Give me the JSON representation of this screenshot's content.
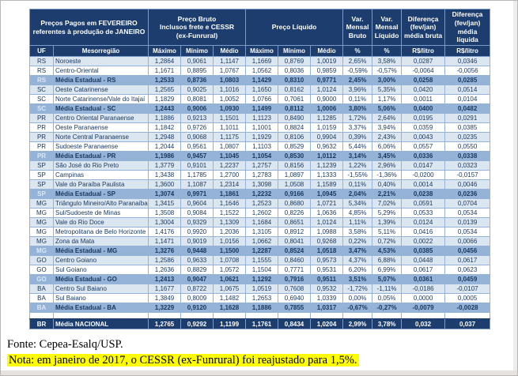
{
  "colors": {
    "header_navy": "#1C3D6E",
    "state_avg_blue": "#95B3D7",
    "zebra_pale_blue": "#DCE6F1",
    "data_text_navy": "#17375E",
    "note_highlight_yellow": "#FFFF00"
  },
  "table": {
    "header": {
      "title": "Preços Pagos em FEVEREIRO\nreferentes à produção de JANEIRO",
      "preco_bruto": "Preço Bruto\nInclusos frete e CESSR\n(ex-Funrural)",
      "preco_liquido": "Preço Líquido",
      "var_mensal_bruto": "Var.\nMensal\nBruto",
      "var_mensal_liquido": "Var.\nMensal\nLíquido",
      "diferenca_bruta": "Diferença\n(fev/jan)\nmédia bruta",
      "diferenca_liquida": "Diferença\n(fev/jan) média\nlíquida",
      "sub": [
        "UF",
        "Mesorregião",
        "Máximo",
        "Mínimo",
        "Médio",
        "Máximo",
        "Mínimo",
        "Médio",
        "%",
        "%",
        "R$/litro",
        "R$/litro"
      ]
    },
    "rows": [
      {
        "uf": "RS",
        "name": "Noroeste",
        "shade": "pale",
        "values": [
          "1,2864",
          "0,9061",
          "1,1147",
          "1,1669",
          "0,8769",
          "1,0019",
          "2,65%",
          "3,58%",
          "0,0287",
          "0,0346"
        ]
      },
      {
        "uf": "RS",
        "name": "Centro-Oriental",
        "shade": "white",
        "values": [
          "1,1671",
          "0,8895",
          "1,0767",
          "1,0562",
          "0,8036",
          "0,9859",
          "-0,59%",
          "-0,57%",
          "-0,0064",
          "-0,0056"
        ]
      },
      {
        "uf": "RS",
        "name": "Média Estadual - RS",
        "shade": "avg",
        "values": [
          "1,2533",
          "0,8736",
          "1,0803",
          "1,1429",
          "0,8310",
          "0,9771",
          "2,45%",
          "3,00%",
          "0,0258",
          "0,0285"
        ]
      },
      {
        "uf": "SC",
        "name": "Oeste Catarinense",
        "shade": "pale",
        "values": [
          "1,2565",
          "0,9025",
          "1,1016",
          "1,1650",
          "0,8162",
          "1,0124",
          "3,96%",
          "5,35%",
          "0,0420",
          "0,0514"
        ]
      },
      {
        "uf": "SC",
        "name": "Norte Catarinense/Vale do Itajaí",
        "shade": "white",
        "values": [
          "1,1829",
          "0,8081",
          "1,0052",
          "1,0766",
          "0,7061",
          "0,9000",
          "0,11%",
          "1,17%",
          "0,0011",
          "0,0104"
        ]
      },
      {
        "uf": "SC",
        "name": "Média Estadual - SC",
        "shade": "avg",
        "values": [
          "1,2443",
          "0,9006",
          "1,0930",
          "1,1499",
          "0,8112",
          "1,0006",
          "3,80%",
          "5,06%",
          "0,0400",
          "0,0482"
        ]
      },
      {
        "uf": "PR",
        "name": "Centro Oriental Paranaense",
        "shade": "pale",
        "values": [
          "1,1886",
          "0,9213",
          "1,1501",
          "1,1123",
          "0,8490",
          "1,1285",
          "1,72%",
          "2,64%",
          "0,0195",
          "0,0291"
        ]
      },
      {
        "uf": "PR",
        "name": "Oeste Paranaense",
        "shade": "white",
        "values": [
          "1,1842",
          "0,9726",
          "1,1011",
          "1,1001",
          "0,8824",
          "1,0159",
          "3,37%",
          "3,94%",
          "0,0359",
          "0,0385"
        ]
      },
      {
        "uf": "PR",
        "name": "Norte Central Paranaense",
        "shade": "pale",
        "values": [
          "1,2948",
          "0,9068",
          "1,1175",
          "1,1929",
          "0,8106",
          "0,9904",
          "0,39%",
          "2,43%",
          "0,0043",
          "0,0235"
        ]
      },
      {
        "uf": "PR",
        "name": "Sudoeste Paranaense",
        "shade": "white",
        "values": [
          "1,2044",
          "0,9561",
          "1,0807",
          "1,1103",
          "0,8529",
          "0,9632",
          "5,44%",
          "6,06%",
          "0,0557",
          "0,0550"
        ]
      },
      {
        "uf": "PR",
        "name": "Média Estadual - PR",
        "shade": "avg",
        "values": [
          "1,1986",
          "0,9457",
          "1,1045",
          "1,1054",
          "0,8530",
          "1,0112",
          "3,14%",
          "3,45%",
          "0,0336",
          "0,0338"
        ]
      },
      {
        "uf": "SP",
        "name": "São José do Rio Preto",
        "shade": "pale",
        "values": [
          "1,3779",
          "0,9101",
          "1,2237",
          "1,2757",
          "0,8156",
          "1,1239",
          "1,22%",
          "2,96%",
          "0,0147",
          "0,0323"
        ]
      },
      {
        "uf": "SP",
        "name": "Campinas",
        "shade": "white",
        "values": [
          "1,3438",
          "1,1785",
          "1,2700",
          "1,2783",
          "1,0897",
          "1,1333",
          "-1,55%",
          "-1,36%",
          "-0,0200",
          "-0,0157"
        ]
      },
      {
        "uf": "SP",
        "name": "Vale do Paraíba Paulista",
        "shade": "pale",
        "values": [
          "1,3600",
          "1,1087",
          "1,2314",
          "1,3098",
          "1,0508",
          "1,1589",
          "0,11%",
          "0,40%",
          "0,0014",
          "0,0046"
        ]
      },
      {
        "uf": "SP",
        "name": "Média Estadual - SP",
        "shade": "avg",
        "values": [
          "1,3074",
          "0,9971",
          "1,1861",
          "1,2232",
          "0,9166",
          "1,0945",
          "2,04%",
          "2,21%",
          "0,0238",
          "0,0236"
        ]
      },
      {
        "uf": "MG",
        "name": "Triângulo Mineiro/Alto Paranaíba",
        "shade": "pale",
        "values": [
          "1,3415",
          "0,9604",
          "1,1646",
          "1,2523",
          "0,8680",
          "1,0721",
          "5,34%",
          "7,02%",
          "0,0591",
          "0,0704"
        ]
      },
      {
        "uf": "MG",
        "name": "Sul/Sudoeste de Minas",
        "shade": "white",
        "values": [
          "1,3508",
          "0,9084",
          "1,1522",
          "1,2602",
          "0,8226",
          "1,0636",
          "4,85%",
          "5,29%",
          "0,0533",
          "0,0534"
        ]
      },
      {
        "uf": "MG",
        "name": "Vale do Rio Doce",
        "shade": "pale",
        "values": [
          "1,3004",
          "0,9329",
          "1,1309",
          "1,1684",
          "0,8651",
          "1,0124",
          "1,11%",
          "1,39%",
          "0,0124",
          "0,0139"
        ]
      },
      {
        "uf": "MG",
        "name": "Metropolitana de Belo Horizonte",
        "shade": "white",
        "values": [
          "1,4176",
          "0,9920",
          "1,2036",
          "1,3105",
          "0,8912",
          "1,0988",
          "3,58%",
          "5,11%",
          "0,0416",
          "0,0534"
        ]
      },
      {
        "uf": "MG",
        "name": "Zona da Mata",
        "shade": "pale",
        "values": [
          "1,1471",
          "0,9019",
          "1,0156",
          "1,0662",
          "0,8041",
          "0,9268",
          "0,22%",
          "0,72%",
          "0,0022",
          "0,0066"
        ]
      },
      {
        "uf": "MG",
        "name": "Média Estadual - MG",
        "shade": "avg",
        "values": [
          "1,3276",
          "0,9448",
          "1,1500",
          "1,2287",
          "0,8524",
          "1,0518",
          "3,47%",
          "4,53%",
          "0,0385",
          "0,0456"
        ]
      },
      {
        "uf": "GO",
        "name": "Centro Goiano",
        "shade": "pale",
        "values": [
          "1,2586",
          "0,9633",
          "1,0708",
          "1,1555",
          "0,8460",
          "0,9573",
          "4,37%",
          "6,88%",
          "0,0448",
          "0,0617"
        ]
      },
      {
        "uf": "GO",
        "name": "Sul Goiano",
        "shade": "white",
        "values": [
          "1,2636",
          "0,8829",
          "1,0572",
          "1,1504",
          "0,7771",
          "0,9531",
          "6,20%",
          "6,99%",
          "0,0617",
          "0,0623"
        ]
      },
      {
        "uf": "GO",
        "name": "Média Estadual - GO",
        "shade": "avg",
        "values": [
          "1,2413",
          "0,9047",
          "1,0621",
          "1,1292",
          "0,7916",
          "0,9511",
          "3,51%",
          "5,07%",
          "0,0361",
          "0,0459"
        ]
      },
      {
        "uf": "BA",
        "name": "Centro Sul Baiano",
        "shade": "pale",
        "values": [
          "1,1677",
          "0,8722",
          "1,0675",
          "1,0519",
          "0,7608",
          "0,9532",
          "-1,72%",
          "-1,11%",
          "-0,0186",
          "-0,0107"
        ]
      },
      {
        "uf": "BA",
        "name": "Sul Baiano",
        "shade": "white",
        "values": [
          "1,3849",
          "0,8009",
          "1,1482",
          "1,2653",
          "0,6940",
          "1,0339",
          "0,00%",
          "0,05%",
          "0,0000",
          "0,0005"
        ]
      },
      {
        "uf": "BA",
        "name": "Média Estadual - BA",
        "shade": "avg",
        "values": [
          "1,3229",
          "0,9120",
          "1,1628",
          "1,1886",
          "0,7855",
          "1,0317",
          "-0,67%",
          "-0,27%",
          "-0,0079",
          "-0,0028"
        ]
      }
    ],
    "national": {
      "uf": "BR",
      "name": "Média NACIONAL",
      "values": [
        "1,2765",
        "0,9292",
        "1,1199",
        "1,1761",
        "0,8434",
        "1,0204",
        "2,99%",
        "3,78%",
        "0,032",
        "0,037"
      ]
    }
  },
  "footer": {
    "fonte": "Fonte: Cepea-Esalq/USP.",
    "nota": "Nota: em janeiro de 2017, o CESSR (ex-Funrural) foi reajustado para 1,5%."
  }
}
